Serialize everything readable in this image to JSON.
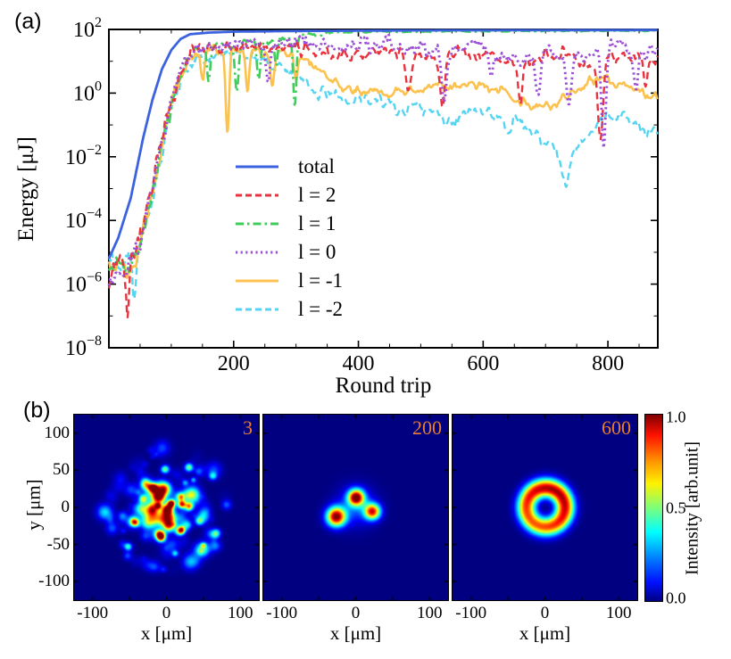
{
  "figure": {
    "panel_a_label": "(a)",
    "panel_b_label": "(b)",
    "background": "#ffffff"
  },
  "chart_data": [
    {
      "id": "energy_evolution",
      "type": "line",
      "xlabel": "Round trip",
      "ylabel": "Energy [μJ]",
      "x_axis": {
        "min": 0,
        "max": 880,
        "major_ticks": [
          200,
          400,
          600,
          800
        ],
        "minor_step": 50
      },
      "y_axis": {
        "scale": "log10",
        "min_exp": -8,
        "max_exp": 2,
        "major_exponents": [
          2,
          0,
          -2,
          -4,
          -6,
          -8
        ],
        "minor_exponents": [
          1,
          -1,
          -3,
          -5,
          -7
        ]
      },
      "legend_position": "center-left",
      "series": [
        {
          "name": "total",
          "legend_label": "total",
          "color": "#3b63e0",
          "linestyle": "solid",
          "seed": 1,
          "log_keypoints": [
            [
              0,
              -5.2
            ],
            [
              15,
              -4.55
            ],
            [
              35,
              -3.3
            ],
            [
              55,
              -1.4
            ],
            [
              70,
              -0.2
            ],
            [
              85,
              0.75
            ],
            [
              100,
              1.35
            ],
            [
              115,
              1.7
            ],
            [
              130,
              1.85
            ],
            [
              160,
              1.9
            ],
            [
              200,
              1.93
            ],
            [
              300,
              1.95
            ],
            [
              500,
              1.97
            ],
            [
              880,
              1.98
            ]
          ],
          "noise_profile": [
            [
              0,
              0
            ],
            [
              880,
              0
            ]
          ],
          "dips": []
        },
        {
          "name": "l2",
          "legend_label": "l = 2",
          "color": "#e8333f",
          "linestyle": "dashed",
          "seed": 2,
          "log_keypoints": [
            [
              0,
              -5.6
            ],
            [
              40,
              -5.2
            ],
            [
              55,
              -4.2
            ],
            [
              75,
              -2.4
            ],
            [
              95,
              -0.6
            ],
            [
              115,
              0.7
            ],
            [
              135,
              1.3
            ],
            [
              155,
              1.42
            ],
            [
              200,
              1.45
            ],
            [
              260,
              1.5
            ],
            [
              330,
              1.35
            ],
            [
              380,
              1.15
            ],
            [
              420,
              1.3
            ],
            [
              470,
              1.35
            ],
            [
              520,
              1.1
            ],
            [
              560,
              1.3
            ],
            [
              600,
              1.2
            ],
            [
              640,
              1.0
            ],
            [
              680,
              1.1
            ],
            [
              720,
              1.25
            ],
            [
              760,
              1.0
            ],
            [
              800,
              1.2
            ],
            [
              840,
              1.05
            ],
            [
              880,
              1.1
            ]
          ],
          "noise_profile": [
            [
              0,
              0.7
            ],
            [
              50,
              0.5
            ],
            [
              130,
              0.3
            ],
            [
              880,
              0.3
            ]
          ],
          "dips": [
            [
              30,
              1.7,
              4
            ],
            [
              480,
              1.2,
              6
            ],
            [
              535,
              1.5,
              5
            ],
            [
              660,
              1.3,
              5
            ],
            [
              788,
              2.6,
              6
            ],
            [
              860,
              0.8,
              4
            ]
          ]
        },
        {
          "name": "l1",
          "legend_label": "l = 1",
          "color": "#41cd5c",
          "linestyle": "dashdot",
          "seed": 3,
          "log_keypoints": [
            [
              0,
              -5.5
            ],
            [
              45,
              -5.1
            ],
            [
              60,
              -4.0
            ],
            [
              80,
              -2.2
            ],
            [
              100,
              -0.4
            ],
            [
              120,
              0.85
            ],
            [
              140,
              1.3
            ],
            [
              170,
              1.45
            ],
            [
              210,
              1.55
            ],
            [
              250,
              1.65
            ],
            [
              290,
              1.75
            ],
            [
              330,
              1.85
            ],
            [
              380,
              1.91
            ],
            [
              440,
              1.93
            ],
            [
              880,
              1.96
            ]
          ],
          "noise_profile": [
            [
              0,
              0.7
            ],
            [
              50,
              0.45
            ],
            [
              140,
              0.22
            ],
            [
              320,
              0.12
            ],
            [
              380,
              0.03
            ],
            [
              880,
              0.02
            ]
          ],
          "dips": [
            [
              160,
              1.1,
              4
            ],
            [
              205,
              1.5,
              4
            ],
            [
              240,
              1.2,
              4
            ],
            [
              268,
              0.9,
              3.5
            ],
            [
              298,
              2.1,
              3.5
            ]
          ]
        },
        {
          "name": "l0",
          "legend_label": "l = 0",
          "color": "#9b4fd6",
          "linestyle": "dotted",
          "seed": 4,
          "log_keypoints": [
            [
              0,
              -5.7
            ],
            [
              40,
              -5.3
            ],
            [
              58,
              -4.1
            ],
            [
              78,
              -2.3
            ],
            [
              98,
              -0.5
            ],
            [
              118,
              0.8
            ],
            [
              138,
              1.4
            ],
            [
              160,
              1.55
            ],
            [
              220,
              1.5
            ],
            [
              280,
              1.6
            ],
            [
              340,
              1.45
            ],
            [
              400,
              1.5
            ],
            [
              450,
              1.55
            ],
            [
              500,
              1.4
            ],
            [
              540,
              1.2
            ],
            [
              580,
              1.5
            ],
            [
              620,
              1.25
            ],
            [
              660,
              1.1
            ],
            [
              700,
              1.3
            ],
            [
              740,
              1.1
            ],
            [
              780,
              1.35
            ],
            [
              820,
              1.45
            ],
            [
              850,
              1.2
            ],
            [
              880,
              1.35
            ]
          ],
          "noise_profile": [
            [
              0,
              0.75
            ],
            [
              50,
              0.5
            ],
            [
              140,
              0.32
            ],
            [
              880,
              0.32
            ]
          ],
          "dips": [
            [
              255,
              1.3,
              5
            ],
            [
              537,
              1.4,
              5
            ],
            [
              612,
              0.9,
              5
            ],
            [
              688,
              1.1,
              5
            ],
            [
              737,
              1.5,
              6
            ],
            [
              793,
              2.9,
              5
            ],
            [
              845,
              1.1,
              4
            ]
          ]
        },
        {
          "name": "l-1",
          "legend_label": "l = -1",
          "color": "#fcc24f",
          "linestyle": "solid",
          "seed": 5,
          "log_keypoints": [
            [
              0,
              -5.5
            ],
            [
              42,
              -5.2
            ],
            [
              58,
              -4.1
            ],
            [
              78,
              -2.3
            ],
            [
              98,
              -0.5
            ],
            [
              118,
              0.75
            ],
            [
              138,
              1.3
            ],
            [
              160,
              1.4
            ],
            [
              200,
              1.35
            ],
            [
              240,
              1.3
            ],
            [
              280,
              1.25
            ],
            [
              310,
              1.05
            ],
            [
              340,
              0.55
            ],
            [
              370,
              0.2
            ],
            [
              400,
              0.05
            ],
            [
              440,
              -0.05
            ],
            [
              480,
              0.1
            ],
            [
              520,
              0.15
            ],
            [
              560,
              0.2
            ],
            [
              600,
              0.25
            ],
            [
              630,
              0.05
            ],
            [
              660,
              -0.25
            ],
            [
              690,
              -0.5
            ],
            [
              715,
              -0.35
            ],
            [
              745,
              0.1
            ],
            [
              775,
              0.45
            ],
            [
              800,
              0.4
            ],
            [
              830,
              0.2
            ],
            [
              860,
              -0.05
            ],
            [
              880,
              -0.15
            ]
          ],
          "noise_profile": [
            [
              0,
              0.7
            ],
            [
              50,
              0.45
            ],
            [
              140,
              0.22
            ],
            [
              880,
              0.22
            ]
          ],
          "dips": [
            [
              150,
              0.9,
              4
            ],
            [
              190,
              2.6,
              4
            ],
            [
              222,
              1.3,
              4
            ],
            [
              262,
              1.0,
              4
            ],
            [
              300,
              0.8,
              4
            ]
          ]
        },
        {
          "name": "l-2",
          "legend_label": "l = -2",
          "color": "#55d5f2",
          "linestyle": "dashed",
          "seed": 6,
          "log_keypoints": [
            [
              0,
              -5.6
            ],
            [
              45,
              -5.2
            ],
            [
              60,
              -4.2
            ],
            [
              80,
              -2.4
            ],
            [
              100,
              -0.6
            ],
            [
              120,
              0.65
            ],
            [
              140,
              1.1
            ],
            [
              165,
              1.25
            ],
            [
              200,
              1.3
            ],
            [
              240,
              1.05
            ],
            [
              280,
              0.9
            ],
            [
              310,
              0.5
            ],
            [
              330,
              0.1
            ],
            [
              360,
              -0.1
            ],
            [
              390,
              -0.25
            ],
            [
              420,
              -0.2
            ],
            [
              450,
              -0.45
            ],
            [
              480,
              -0.55
            ],
            [
              510,
              -0.5
            ],
            [
              540,
              -0.95
            ],
            [
              570,
              -0.7
            ],
            [
              600,
              -0.55
            ],
            [
              630,
              -0.8
            ],
            [
              660,
              -1.0
            ],
            [
              690,
              -1.3
            ],
            [
              715,
              -1.8
            ],
            [
              732,
              -2.9
            ],
            [
              750,
              -1.7
            ],
            [
              775,
              -1.1
            ],
            [
              800,
              -0.75
            ],
            [
              820,
              -0.6
            ],
            [
              845,
              -0.9
            ],
            [
              865,
              -1.25
            ],
            [
              880,
              -1.2
            ]
          ],
          "noise_profile": [
            [
              0,
              0.75
            ],
            [
              50,
              0.5
            ],
            [
              140,
              0.3
            ],
            [
              880,
              0.3
            ]
          ],
          "dips": [
            [
              40,
              1.0,
              4
            ],
            [
              640,
              0.4,
              5
            ]
          ]
        }
      ]
    },
    {
      "id": "beam_profiles",
      "type": "heatmap",
      "colormap": "jet",
      "extent_um": 125,
      "x_ticks": [
        -100,
        0,
        100
      ],
      "y_ticks": [
        100,
        50,
        0,
        -50,
        -100
      ],
      "xlabel": "x [μm]",
      "ylabel": "y [μm]",
      "frame_number_color": "#e87d2a",
      "frames": [
        {
          "label": "3",
          "pattern": "speckle",
          "seed": 13,
          "blob_count": 150,
          "cloud_radius": 85,
          "bright_spots": [
            [
              6,
              6,
              3.2,
              1.0
            ],
            [
              -18,
              27,
              4,
              0.85
            ],
            [
              30,
              2,
              4,
              0.7
            ],
            [
              -8,
              -40,
              4,
              0.72
            ],
            [
              20,
              -30,
              3.5,
              0.62
            ],
            [
              -32,
              12,
              4,
              0.55
            ],
            [
              -2,
              52,
              4,
              0.45
            ],
            [
              44,
              -18,
              4,
              0.4
            ],
            [
              -45,
              -18,
              4,
              0.4
            ]
          ]
        },
        {
          "label": "200",
          "pattern": "blobs",
          "blobs": [
            [
              -27,
              -12,
              9,
              1.0
            ],
            [
              0,
              14,
              7.5,
              0.98
            ],
            [
              22,
              -5,
              7.5,
              0.85
            ],
            [
              0,
              2,
              18,
              0.2
            ]
          ]
        },
        {
          "label": "600",
          "pattern": "ring",
          "center": [
            1,
            0
          ],
          "radius": 26,
          "sigma": 9,
          "amp": 0.97,
          "asym": 0.09,
          "asym_angle_deg": 55
        }
      ],
      "colorbar": {
        "label": "Intensity [arb.unit]",
        "tick_labels": [
          "1.0",
          "0.5",
          "0.0"
        ],
        "gradient_stops": [
          [
            0,
            "#7f0000"
          ],
          [
            11,
            "#ff1000"
          ],
          [
            25,
            "#ff9400"
          ],
          [
            37,
            "#fff200"
          ],
          [
            50,
            "#7dff7a"
          ],
          [
            63,
            "#00ffff"
          ],
          [
            80,
            "#0064ff"
          ],
          [
            90,
            "#0010ff"
          ],
          [
            100,
            "#000083"
          ]
        ]
      }
    }
  ]
}
